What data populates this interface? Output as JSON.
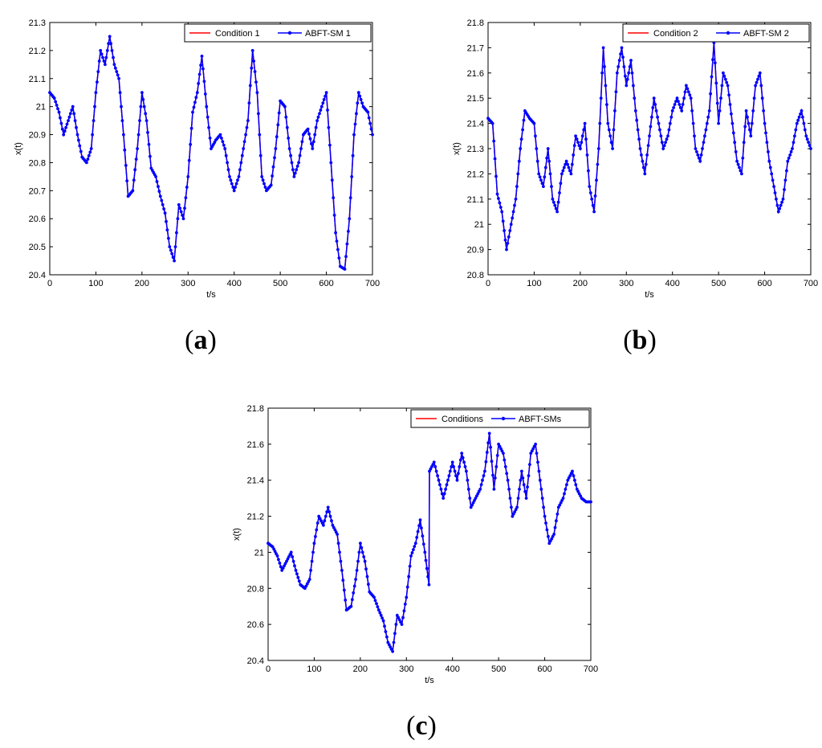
{
  "captions": {
    "a": "a",
    "b": "b",
    "c": "c"
  },
  "colors": {
    "condition": "#ff0000",
    "abft": "#0000ff",
    "axes": "#000000"
  },
  "chart_data": [
    {
      "id": "a",
      "type": "line",
      "xlabel": "t/s",
      "ylabel": "x(t)",
      "xlim": [
        0,
        700
      ],
      "ylim": [
        20.4,
        21.3
      ],
      "xticks": [
        0,
        100,
        200,
        300,
        400,
        500,
        600,
        700
      ],
      "yticks": [
        20.4,
        20.5,
        20.6,
        20.7,
        20.8,
        20.9,
        21,
        21.1,
        21.2,
        21.3
      ],
      "ytick_labels": [
        "20.4",
        "20.5",
        "20.6",
        "20.7",
        "20.8",
        "20.9",
        "21",
        "21.1",
        "21.2",
        "21.3"
      ],
      "grid": false,
      "legend_position": "top-right",
      "x": [
        0,
        10,
        20,
        30,
        40,
        50,
        60,
        70,
        80,
        90,
        100,
        110,
        120,
        130,
        140,
        150,
        160,
        170,
        180,
        190,
        200,
        210,
        220,
        230,
        240,
        250,
        260,
        270,
        280,
        290,
        300,
        310,
        320,
        330,
        340,
        350,
        360,
        370,
        380,
        390,
        400,
        410,
        420,
        430,
        440,
        450,
        460,
        470,
        480,
        490,
        500,
        510,
        520,
        530,
        540,
        550,
        560,
        570,
        580,
        590,
        600,
        610,
        620,
        630,
        640,
        650,
        660,
        670,
        680,
        690,
        700
      ],
      "series": [
        {
          "name": "Condition 1",
          "marker": false,
          "values": [
            21.05,
            21.03,
            20.98,
            20.9,
            20.95,
            21.0,
            20.9,
            20.82,
            20.8,
            20.85,
            21.05,
            21.2,
            21.15,
            21.25,
            21.15,
            21.1,
            20.9,
            20.68,
            20.7,
            20.85,
            21.05,
            20.95,
            20.78,
            20.75,
            20.68,
            20.62,
            20.5,
            20.45,
            20.65,
            20.6,
            20.75,
            20.98,
            21.05,
            21.18,
            21.0,
            20.85,
            20.88,
            20.9,
            20.85,
            20.75,
            20.7,
            20.75,
            20.85,
            20.95,
            21.2,
            21.05,
            20.75,
            20.7,
            20.72,
            20.85,
            21.02,
            21.0,
            20.85,
            20.75,
            20.8,
            20.9,
            20.92,
            20.85,
            20.95,
            21.0,
            21.05,
            20.8,
            20.55,
            20.43,
            20.42,
            20.6,
            20.9,
            21.05,
            21.0,
            20.98,
            20.9
          ]
        },
        {
          "name": "ABFT-SM 1",
          "marker": true,
          "values": [
            21.05,
            21.03,
            20.98,
            20.9,
            20.95,
            21.0,
            20.9,
            20.82,
            20.8,
            20.85,
            21.05,
            21.2,
            21.15,
            21.25,
            21.15,
            21.1,
            20.9,
            20.68,
            20.7,
            20.85,
            21.05,
            20.95,
            20.78,
            20.75,
            20.68,
            20.62,
            20.5,
            20.45,
            20.65,
            20.6,
            20.75,
            20.98,
            21.05,
            21.18,
            21.0,
            20.85,
            20.88,
            20.9,
            20.85,
            20.75,
            20.7,
            20.75,
            20.85,
            20.95,
            21.2,
            21.05,
            20.75,
            20.7,
            20.72,
            20.85,
            21.02,
            21.0,
            20.85,
            20.75,
            20.8,
            20.9,
            20.92,
            20.85,
            20.95,
            21.0,
            21.05,
            20.8,
            20.55,
            20.43,
            20.42,
            20.6,
            20.9,
            21.05,
            21.0,
            20.98,
            20.9
          ]
        }
      ]
    },
    {
      "id": "b",
      "type": "line",
      "xlabel": "t/s",
      "ylabel": "x(t)",
      "xlim": [
        0,
        700
      ],
      "ylim": [
        20.8,
        21.8
      ],
      "xticks": [
        0,
        100,
        200,
        300,
        400,
        500,
        600,
        700
      ],
      "yticks": [
        20.8,
        20.9,
        21,
        21.1,
        21.2,
        21.3,
        21.4,
        21.5,
        21.6,
        21.7,
        21.8
      ],
      "ytick_labels": [
        "20.8",
        "20.9",
        "21",
        "21.1",
        "21.2",
        "21.3",
        "21.4",
        "21.5",
        "21.6",
        "21.7",
        "21.8"
      ],
      "grid": false,
      "legend_position": "top-right",
      "x": [
        0,
        10,
        20,
        30,
        40,
        50,
        60,
        70,
        80,
        90,
        100,
        110,
        120,
        130,
        140,
        150,
        160,
        170,
        180,
        190,
        200,
        210,
        220,
        230,
        240,
        250,
        260,
        270,
        280,
        290,
        300,
        310,
        320,
        330,
        340,
        350,
        360,
        370,
        380,
        390,
        400,
        410,
        420,
        430,
        440,
        450,
        460,
        470,
        480,
        490,
        500,
        510,
        520,
        530,
        540,
        550,
        560,
        570,
        580,
        590,
        600,
        610,
        620,
        630,
        640,
        650,
        660,
        670,
        680,
        690,
        700
      ],
      "series": [
        {
          "name": "Condition 2",
          "marker": false,
          "values": [
            21.42,
            21.4,
            21.12,
            21.05,
            20.9,
            21.0,
            21.1,
            21.3,
            21.45,
            21.42,
            21.4,
            21.2,
            21.15,
            21.3,
            21.1,
            21.05,
            21.2,
            21.25,
            21.2,
            21.35,
            21.3,
            21.4,
            21.15,
            21.05,
            21.3,
            21.7,
            21.4,
            21.3,
            21.6,
            21.7,
            21.55,
            21.65,
            21.45,
            21.3,
            21.2,
            21.35,
            21.5,
            21.4,
            21.3,
            21.35,
            21.45,
            21.5,
            21.45,
            21.55,
            21.5,
            21.3,
            21.25,
            21.35,
            21.45,
            21.72,
            21.4,
            21.6,
            21.55,
            21.4,
            21.25,
            21.2,
            21.45,
            21.35,
            21.55,
            21.6,
            21.4,
            21.25,
            21.15,
            21.05,
            21.1,
            21.25,
            21.3,
            21.4,
            21.45,
            21.35,
            21.3
          ]
        },
        {
          "name": "ABFT-SM 2",
          "marker": true,
          "values": [
            21.42,
            21.4,
            21.12,
            21.05,
            20.9,
            21.0,
            21.1,
            21.3,
            21.45,
            21.42,
            21.4,
            21.2,
            21.15,
            21.3,
            21.1,
            21.05,
            21.2,
            21.25,
            21.2,
            21.35,
            21.3,
            21.4,
            21.15,
            21.05,
            21.3,
            21.7,
            21.4,
            21.3,
            21.6,
            21.7,
            21.55,
            21.65,
            21.45,
            21.3,
            21.2,
            21.35,
            21.5,
            21.4,
            21.3,
            21.35,
            21.45,
            21.5,
            21.45,
            21.55,
            21.5,
            21.3,
            21.25,
            21.35,
            21.45,
            21.72,
            21.4,
            21.6,
            21.55,
            21.4,
            21.25,
            21.2,
            21.45,
            21.35,
            21.55,
            21.6,
            21.4,
            21.25,
            21.15,
            21.05,
            21.1,
            21.25,
            21.3,
            21.4,
            21.45,
            21.35,
            21.3
          ]
        }
      ]
    },
    {
      "id": "c",
      "type": "line",
      "xlabel": "t/s",
      "ylabel": "x(t)",
      "xlim": [
        0,
        700
      ],
      "ylim": [
        20.4,
        21.8
      ],
      "xticks": [
        0,
        100,
        200,
        300,
        400,
        500,
        600,
        700
      ],
      "yticks": [
        20.4,
        20.6,
        20.8,
        21,
        21.2,
        21.4,
        21.6,
        21.8
      ],
      "ytick_labels": [
        "20.4",
        "20.6",
        "20.8",
        "21",
        "21.2",
        "21.4",
        "21.6",
        "21.8"
      ],
      "grid": false,
      "legend_position": "top-right",
      "x": [
        0,
        10,
        20,
        30,
        40,
        50,
        60,
        70,
        80,
        90,
        100,
        110,
        120,
        130,
        140,
        150,
        160,
        170,
        180,
        190,
        200,
        210,
        220,
        230,
        240,
        250,
        260,
        270,
        280,
        290,
        300,
        310,
        320,
        330,
        340,
        349,
        350,
        360,
        370,
        380,
        390,
        400,
        410,
        420,
        430,
        440,
        450,
        460,
        470,
        480,
        490,
        500,
        510,
        520,
        530,
        540,
        550,
        560,
        570,
        580,
        590,
        600,
        610,
        620,
        630,
        640,
        650,
        660,
        670,
        680,
        690,
        700
      ],
      "series": [
        {
          "name": "Conditions",
          "marker": false,
          "values": [
            21.05,
            21.03,
            20.98,
            20.9,
            20.95,
            21.0,
            20.9,
            20.82,
            20.8,
            20.85,
            21.05,
            21.2,
            21.15,
            21.25,
            21.15,
            21.1,
            20.9,
            20.68,
            20.7,
            20.85,
            21.05,
            20.95,
            20.78,
            20.75,
            20.68,
            20.62,
            20.5,
            20.45,
            20.65,
            20.6,
            20.75,
            20.98,
            21.05,
            21.18,
            21.0,
            20.82,
            21.45,
            21.5,
            21.4,
            21.3,
            21.4,
            21.5,
            21.4,
            21.55,
            21.45,
            21.25,
            21.3,
            21.35,
            21.45,
            21.66,
            21.35,
            21.6,
            21.55,
            21.4,
            21.2,
            21.25,
            21.45,
            21.3,
            21.55,
            21.6,
            21.4,
            21.2,
            21.05,
            21.1,
            21.25,
            21.3,
            21.4,
            21.45,
            21.35,
            21.3,
            21.28,
            21.28
          ]
        },
        {
          "name": "ABFT-SMs",
          "marker": true,
          "values": [
            21.05,
            21.03,
            20.98,
            20.9,
            20.95,
            21.0,
            20.9,
            20.82,
            20.8,
            20.85,
            21.05,
            21.2,
            21.15,
            21.25,
            21.15,
            21.1,
            20.9,
            20.68,
            20.7,
            20.85,
            21.05,
            20.95,
            20.78,
            20.75,
            20.68,
            20.62,
            20.5,
            20.45,
            20.65,
            20.6,
            20.75,
            20.98,
            21.05,
            21.18,
            21.0,
            20.82,
            21.45,
            21.5,
            21.4,
            21.3,
            21.4,
            21.5,
            21.4,
            21.55,
            21.45,
            21.25,
            21.3,
            21.35,
            21.45,
            21.66,
            21.35,
            21.6,
            21.55,
            21.4,
            21.2,
            21.25,
            21.45,
            21.3,
            21.55,
            21.6,
            21.4,
            21.2,
            21.05,
            21.1,
            21.25,
            21.3,
            21.4,
            21.45,
            21.35,
            21.3,
            21.28,
            21.28
          ]
        }
      ]
    }
  ]
}
